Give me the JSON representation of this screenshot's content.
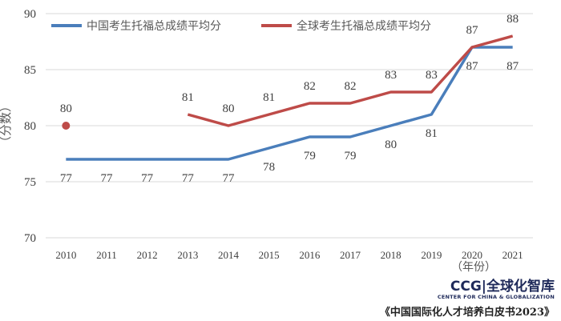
{
  "chart_data": {
    "type": "line",
    "categories": [
      "2010",
      "2011",
      "2012",
      "2013",
      "2014",
      "2015",
      "2016",
      "2017",
      "2018",
      "2019",
      "2020",
      "2021"
    ],
    "series": [
      {
        "name": "中国考生托福总成绩平均分",
        "color": "#4a7ebb",
        "values": [
          77,
          77,
          77,
          77,
          77,
          78,
          79,
          79,
          80,
          81,
          87,
          87
        ]
      },
      {
        "name": "全球考生托福总成绩平均分",
        "color": "#be4b48",
        "values": [
          80,
          null,
          null,
          81,
          80,
          81,
          82,
          82,
          83,
          83,
          87,
          88
        ]
      }
    ],
    "ylabel": "（分数）",
    "xlabel": "（年份）",
    "ylim": [
      70,
      90
    ],
    "yticks": [
      70,
      75,
      80,
      85,
      90
    ],
    "grid": true,
    "legend": "top"
  },
  "footer": {
    "logo_main": "CCG|全球化智库",
    "logo_sub": "CENTER FOR CHINA & GLOBALIZATION",
    "source": "《中国国际化人才培养白皮书2023》"
  }
}
